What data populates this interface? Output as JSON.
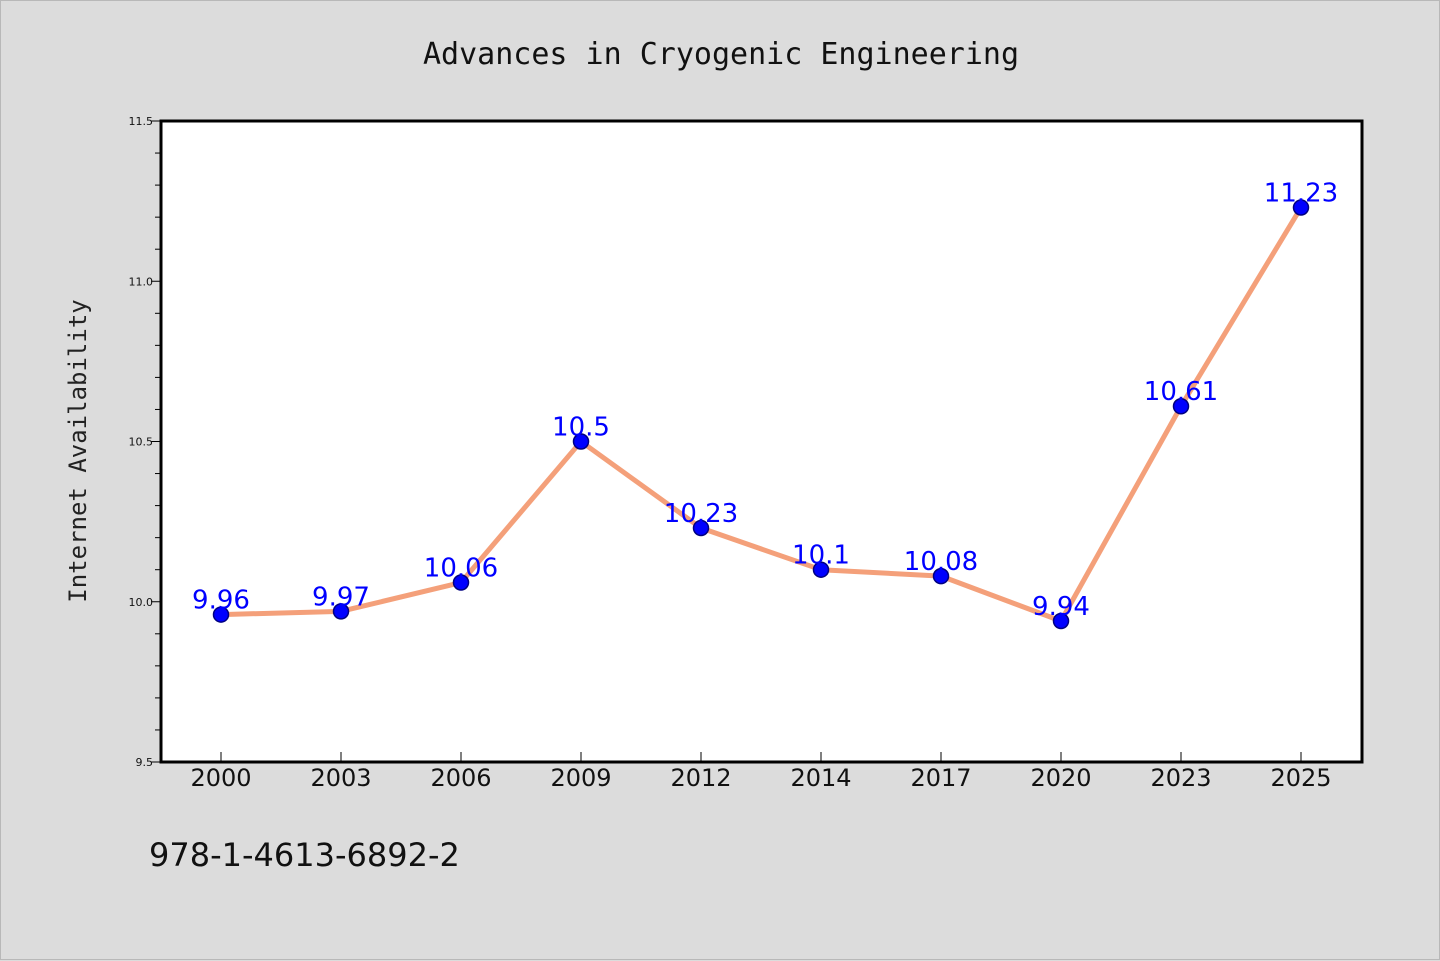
{
  "chart_data": {
    "type": "line",
    "title": "Advances in Cryogenic Engineering",
    "xlabel": "",
    "ylabel": "Internet Availability",
    "categories": [
      "2000",
      "2003",
      "2006",
      "2009",
      "2012",
      "2014",
      "2017",
      "2020",
      "2023",
      "2025"
    ],
    "series": [
      {
        "values": [
          9.96,
          9.97,
          10.06,
          10.5,
          10.23,
          10.1,
          10.08,
          9.94,
          10.61,
          11.23
        ],
        "data_labels": [
          "9.96",
          "9.97",
          "10.06",
          "10.5",
          "10.23",
          "10.1",
          "10.08",
          "9.94",
          "10.61",
          "11.23"
        ]
      }
    ],
    "ylim": [
      9.5,
      11.5
    ],
    "yticks": [
      "9.5",
      "10.0",
      "10.5",
      "11.0",
      "11.5"
    ],
    "grid": false,
    "legend": "none",
    "colors": {
      "line": "#f4a07a",
      "marker": "#0000ff",
      "marker_edge": "#000080",
      "data_label": "#0000ff",
      "background": "#dcdcdc",
      "plot_background": "#ffffff"
    }
  },
  "footer": {
    "isbn": "978-1-4613-6892-2"
  }
}
